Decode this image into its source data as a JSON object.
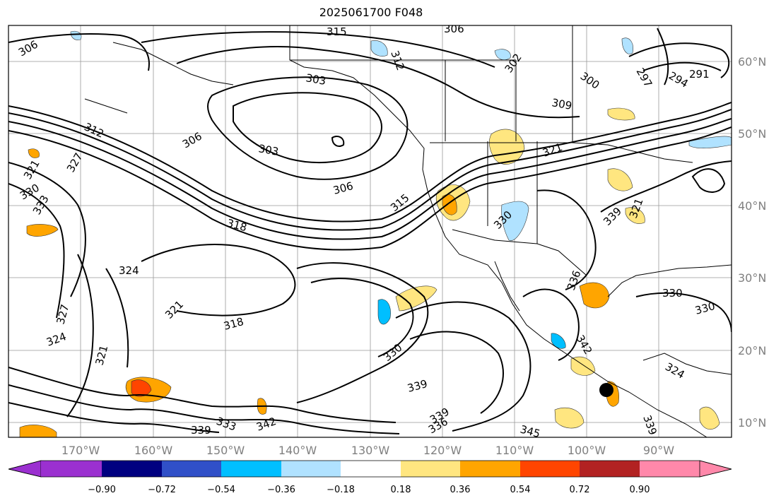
{
  "title": "2025061700 F048",
  "map": {
    "lon_ticks": [
      "170°W",
      "160°W",
      "150°W",
      "140°W",
      "130°W",
      "120°W",
      "110°W",
      "100°W",
      "90°W"
    ],
    "lat_ticks": [
      "60°N",
      "50°N",
      "40°N",
      "30°N",
      "20°N",
      "10°N"
    ],
    "contour_labels": [
      "306",
      "315",
      "306",
      "312",
      "302",
      "300",
      "297",
      "294",
      "291",
      "309",
      "303",
      "306",
      "303",
      "306",
      "312",
      "321",
      "327",
      "321",
      "330",
      "333",
      "318",
      "315",
      "321",
      "330",
      "336",
      "339",
      "324",
      "327",
      "321",
      "324",
      "321",
      "318",
      "330",
      "339",
      "342",
      "339",
      "336",
      "333",
      "345",
      "339",
      "330",
      "330",
      "342",
      "339",
      "324"
    ]
  },
  "colorbar": {
    "ticks": [
      "−0.90",
      "−0.72",
      "−0.54",
      "−0.36",
      "−0.18",
      "0.18",
      "0.36",
      "0.54",
      "0.72",
      "0.90"
    ],
    "colors": [
      "#9b30d0",
      "#000080",
      "#3050c8",
      "#00bfff",
      "#b0e2ff",
      "#ffffff",
      "#ffe680",
      "#ffa500",
      "#ff4500",
      "#b22222",
      "#ff88aa"
    ]
  }
}
